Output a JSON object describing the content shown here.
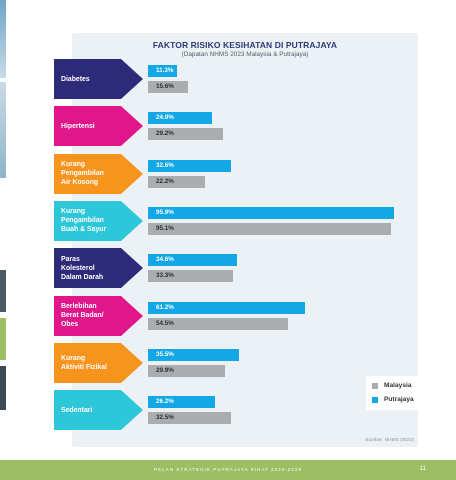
{
  "chart_data": {
    "type": "bar",
    "orientation": "horizontal",
    "title": "FAKTOR RISIKO KESIHATAN DI PUTRAJAYA",
    "subtitle": "(Dapatan NHMS 2023 Malaysia & Putrajaya)",
    "categories": [
      "Diabetes",
      "Hipertensi",
      "Kurang Pengambilan Air Kosong",
      "Kurang Pengambilan Buah & Sayur",
      "Paras Kolesterol Dalam Darah",
      "Berlebihan Berat Badan/ Obes",
      "Kurang Aktiviti Fizikal",
      "Sedentari"
    ],
    "category_lines": [
      [
        "Diabetes"
      ],
      [
        "Hipertensi"
      ],
      [
        "Kurang",
        "Pengambilan",
        "Air Kosong"
      ],
      [
        "Kurang",
        "Pengambilan",
        "Buah & Sayur"
      ],
      [
        "Paras",
        "Kolesterol",
        "Dalam Darah"
      ],
      [
        "Berlebihan",
        "Berat Badan/",
        "Obes"
      ],
      [
        "Kurang",
        "Aktiviti Fizikal"
      ],
      [
        "Sedentari"
      ]
    ],
    "category_colors": [
      "#2e2a7a",
      "#e0168a",
      "#f7941d",
      "#2ec7d9",
      "#2e2a7a",
      "#e0168a",
      "#f7941d",
      "#2ec7d9"
    ],
    "series": [
      {
        "name": "Putrajaya",
        "color": "#13a7e6",
        "values": [
          11.3,
          24.9,
          32.6,
          95.9,
          34.6,
          61.2,
          35.5,
          26.2
        ],
        "labels": [
          "11.3%",
          "24.9%",
          "32.6%",
          "95.9%",
          "34.6%",
          "61.2%",
          "35.5%",
          "26.2%"
        ]
      },
      {
        "name": "Malaysia",
        "color": "#a9adaf",
        "values": [
          15.6,
          29.2,
          22.2,
          95.1,
          33.3,
          54.5,
          29.9,
          32.5
        ],
        "labels": [
          "15.6%",
          "29.2%",
          "22.2%",
          "95.1%",
          "33.3%",
          "54.5%",
          "29.9%",
          "32.5%"
        ]
      }
    ],
    "xlim": [
      0,
      100
    ],
    "grid": false,
    "legend_position": "bottom-right",
    "legend": [
      "Malaysia",
      "Putrajaya"
    ],
    "source": "Sumber: NHMS (2023)"
  },
  "footer": {
    "text": "PELAN STRATEGIK PUTRAJAYA SIHAT 2024-2028",
    "page": "11"
  }
}
